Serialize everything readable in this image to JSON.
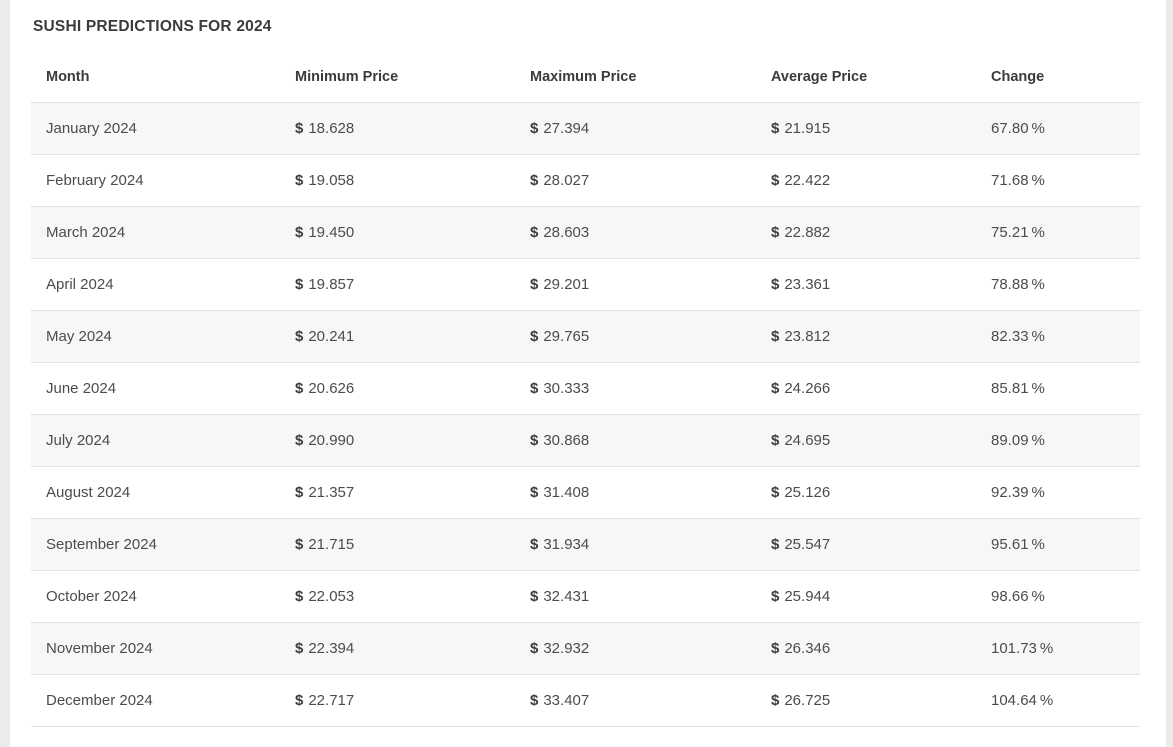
{
  "page": {
    "title": "SUSHI PREDICTIONS FOR 2024"
  },
  "table": {
    "currency_symbol": "$",
    "percent_suffix": "%",
    "columns": [
      "Month",
      "Minimum Price",
      "Maximum Price",
      "Average Price",
      "Change"
    ],
    "rows": [
      {
        "month": "January 2024",
        "min": "18.628",
        "max": "27.394",
        "avg": "21.915",
        "change": "67.80"
      },
      {
        "month": "February 2024",
        "min": "19.058",
        "max": "28.027",
        "avg": "22.422",
        "change": "71.68"
      },
      {
        "month": "March 2024",
        "min": "19.450",
        "max": "28.603",
        "avg": "22.882",
        "change": "75.21"
      },
      {
        "month": "April 2024",
        "min": "19.857",
        "max": "29.201",
        "avg": "23.361",
        "change": "78.88"
      },
      {
        "month": "May 2024",
        "min": "20.241",
        "max": "29.765",
        "avg": "23.812",
        "change": "82.33"
      },
      {
        "month": "June 2024",
        "min": "20.626",
        "max": "30.333",
        "avg": "24.266",
        "change": "85.81"
      },
      {
        "month": "July 2024",
        "min": "20.990",
        "max": "30.868",
        "avg": "24.695",
        "change": "89.09"
      },
      {
        "month": "August 2024",
        "min": "21.357",
        "max": "31.408",
        "avg": "25.126",
        "change": "92.39"
      },
      {
        "month": "September 2024",
        "min": "21.715",
        "max": "31.934",
        "avg": "25.547",
        "change": "95.61"
      },
      {
        "month": "October 2024",
        "min": "22.053",
        "max": "32.431",
        "avg": "25.944",
        "change": "98.66"
      },
      {
        "month": "November 2024",
        "min": "22.394",
        "max": "32.932",
        "avg": "26.346",
        "change": "101.73"
      },
      {
        "month": "December 2024",
        "min": "22.717",
        "max": "33.407",
        "avg": "26.725",
        "change": "104.64"
      }
    ]
  }
}
